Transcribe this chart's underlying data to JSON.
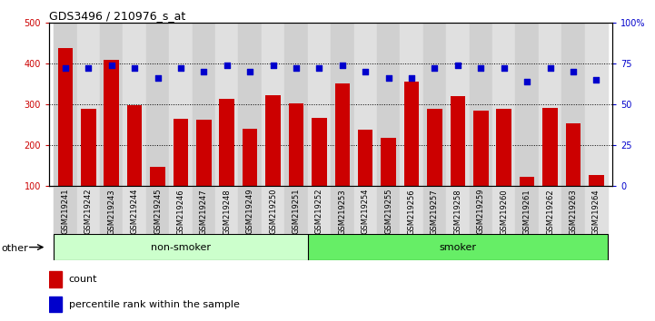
{
  "title": "GDS3496 / 210976_s_at",
  "categories": [
    "GSM219241",
    "GSM219242",
    "GSM219243",
    "GSM219244",
    "GSM219245",
    "GSM219246",
    "GSM219247",
    "GSM219248",
    "GSM219249",
    "GSM219250",
    "GSM219251",
    "GSM219252",
    "GSM219253",
    "GSM219254",
    "GSM219255",
    "GSM219256",
    "GSM219257",
    "GSM219258",
    "GSM219259",
    "GSM219260",
    "GSM219261",
    "GSM219262",
    "GSM219263",
    "GSM219264"
  ],
  "bar_values": [
    437,
    290,
    408,
    299,
    148,
    265,
    263,
    313,
    241,
    323,
    302,
    267,
    352,
    237,
    218,
    355,
    289,
    320,
    284,
    289,
    122,
    292,
    254,
    128
  ],
  "percentile_values": [
    72,
    72,
    74,
    72,
    66,
    72,
    70,
    74,
    70,
    74,
    72,
    72,
    74,
    70,
    66,
    66,
    72,
    74,
    72,
    72,
    64,
    72,
    70,
    65
  ],
  "bar_color": "#cc0000",
  "dot_color": "#0000cc",
  "ylim_left": [
    100,
    500
  ],
  "ylim_right": [
    0,
    100
  ],
  "yticks_left": [
    100,
    200,
    300,
    400,
    500
  ],
  "yticks_right": [
    0,
    25,
    50,
    75,
    100
  ],
  "group1_label": "non-smoker",
  "group1_count": 11,
  "group2_label": "smoker",
  "group2_count": 13,
  "group_label_left": "other",
  "group1_color": "#ccffcc",
  "group2_color": "#66ee66",
  "legend_count_label": "count",
  "legend_percentile_label": "percentile rank within the sample",
  "grid_color": "#000000",
  "background_color": "#ffffff",
  "title_fontsize": 9,
  "tick_fontsize": 7,
  "xtick_fontsize": 6,
  "axis_label_color_left": "#cc0000",
  "axis_label_color_right": "#0000cc",
  "xtick_bg_even": "#d0d0d0",
  "xtick_bg_odd": "#e0e0e0"
}
